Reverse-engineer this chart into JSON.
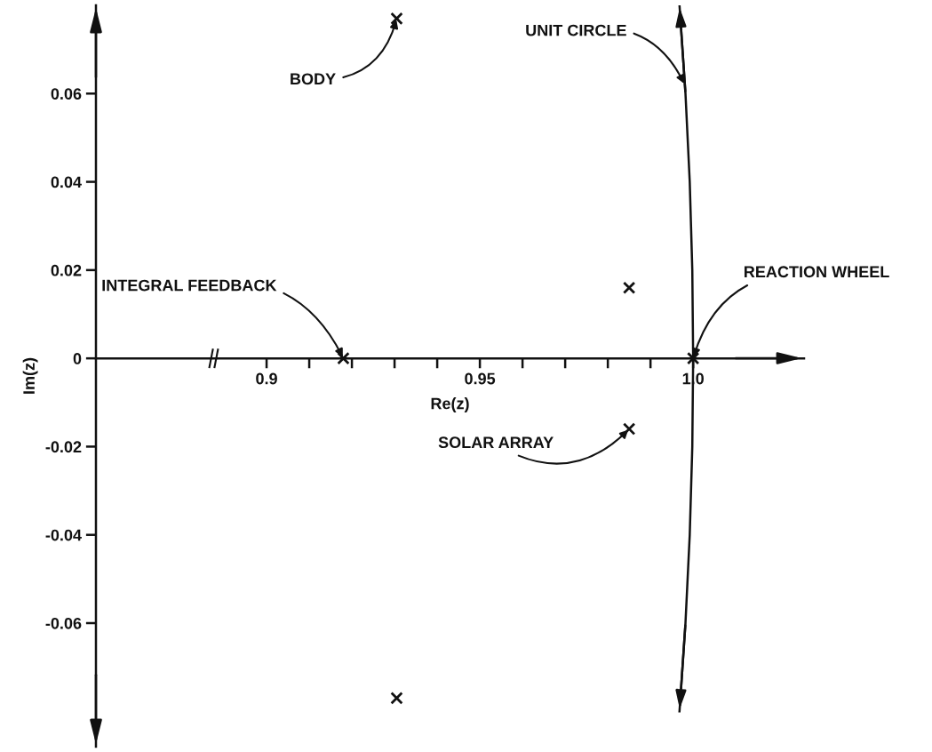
{
  "chart_data": {
    "type": "scatter",
    "xlabel": "Re(z)",
    "ylabel": "Im(z)",
    "xlim": [
      0.86,
      1.026
    ],
    "ylim": [
      -0.088,
      0.08
    ],
    "xticks": [
      {
        "value": 0.9,
        "label": "0.9"
      },
      {
        "value": 0.91,
        "label": null
      },
      {
        "value": 0.92,
        "label": null
      },
      {
        "value": 0.93,
        "label": null
      },
      {
        "value": 0.94,
        "label": null
      },
      {
        "value": 0.95,
        "label": "0.95"
      },
      {
        "value": 0.96,
        "label": null
      },
      {
        "value": 0.97,
        "label": null
      },
      {
        "value": 0.98,
        "label": null
      },
      {
        "value": 0.99,
        "label": null
      },
      {
        "value": 1.0,
        "label": "1.0"
      }
    ],
    "yticks": [
      -0.06,
      -0.04,
      -0.02,
      0,
      0.02,
      0.04,
      0.06
    ],
    "grid": false,
    "marker": "cross",
    "series": [
      {
        "color": "#111111",
        "x": [
          0.918,
          0.9305,
          0.9305,
          0.985,
          0.985,
          1.0
        ],
        "values": [
          0,
          0.077,
          -0.077,
          0.016,
          -0.016,
          0
        ]
      },
      {
        "type": "line",
        "color": "#111111",
        "marker": "none",
        "line_style": "solid",
        "x": [
          0.9968,
          0.9982,
          0.9992,
          0.9998,
          1.0,
          0.9998,
          0.9992,
          0.9982,
          0.9968
        ],
        "values": [
          -0.08,
          -0.06,
          -0.04,
          -0.02,
          0,
          0.02,
          0.04,
          0.06,
          0.08
        ]
      }
    ],
    "annotations": [
      {
        "text": "BODY",
        "x": 0.9305,
        "y": 0.077
      },
      {
        "text": "UNIT CIRCLE",
        "x": 0.998,
        "y": 0.062
      },
      {
        "text": "INTEGRAL FEEDBACK",
        "x": 0.918,
        "y": 0.0
      },
      {
        "text": "REACTION WHEEL",
        "x": 1.0,
        "y": 0.0
      },
      {
        "text": "SOLAR ARRAY",
        "x": 0.985,
        "y": -0.016
      }
    ]
  }
}
